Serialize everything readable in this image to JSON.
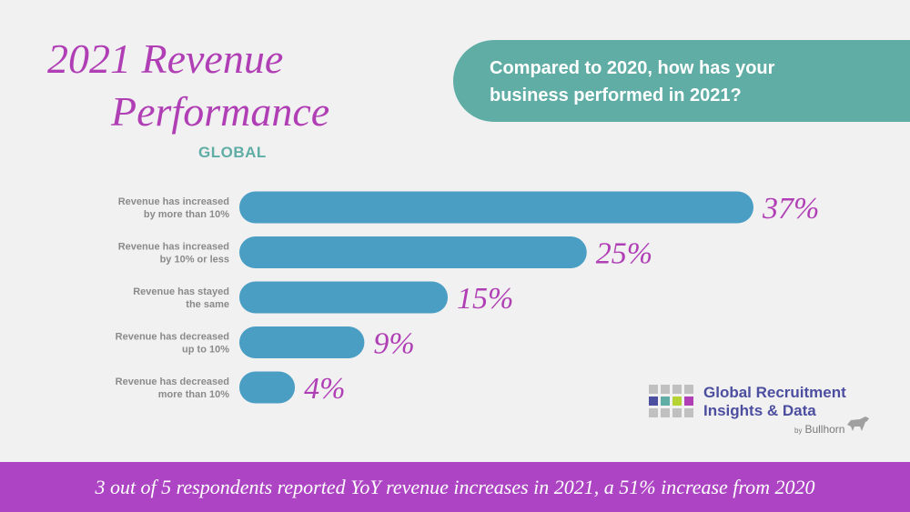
{
  "title": {
    "line1": "2021 Revenue",
    "line2": "Performance"
  },
  "subtitle": "GLOBAL",
  "question": {
    "line1": "Compared to 2020, how has your",
    "line2": "business performed in 2021?"
  },
  "colors": {
    "bar": "#4a9ec4",
    "title": "#b03fb5",
    "accent": "#5fada5",
    "footer": "#ad44c3"
  },
  "chart_data": {
    "type": "bar",
    "orientation": "horizontal",
    "title": "2021 Revenue Performance",
    "categories": [
      [
        "Revenue has increased",
        "by more than 10%"
      ],
      [
        "Revenue has increased",
        "by 10% or less"
      ],
      [
        "Revenue has stayed",
        "the same"
      ],
      [
        "Revenue has decreased",
        "up to 10%"
      ],
      [
        "Revenue has decreased",
        "more than 10%"
      ]
    ],
    "values": [
      37,
      25,
      15,
      9,
      4
    ],
    "value_labels": [
      "37%",
      "25%",
      "15%",
      "9%",
      "4%"
    ],
    "xlim": [
      0,
      37
    ],
    "grid": false
  },
  "logo": {
    "name_line1": "Global Recruitment",
    "name_line2": "Insights & Data",
    "by": "by",
    "brand": "Bullhorn",
    "grid_colors": [
      "#c0c0c0",
      "#c0c0c0",
      "#c0c0c0",
      "#c0c0c0",
      "#4c4ea0",
      "#5fada5",
      "#b6d334",
      "#b03fb5",
      "#c0c0c0",
      "#c0c0c0",
      "#c0c0c0",
      "#c0c0c0"
    ],
    "icon": "bull-icon"
  },
  "footer": "3 out of 5 respondents reported YoY revenue increases in 2021, a 51% increase from 2020"
}
